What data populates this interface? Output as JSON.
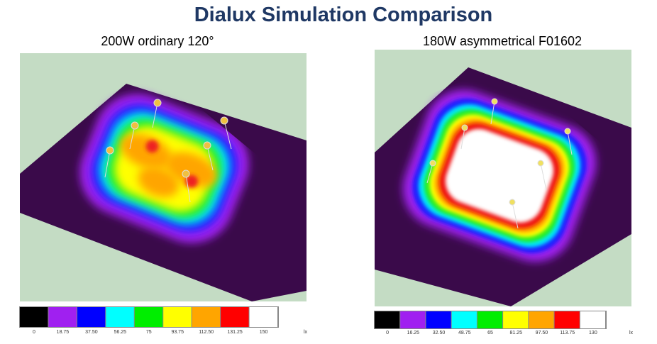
{
  "title": "Dialux Simulation Comparison",
  "panels": [
    {
      "subtitle": "200W ordinary 120°",
      "legend": {
        "labels": [
          "0",
          "18.75",
          "37.50",
          "56.25",
          "75",
          "93.75",
          "112.50",
          "131.25",
          "150"
        ],
        "unit": "lx"
      }
    },
    {
      "subtitle": "180W asymmetrical F01602",
      "legend": {
        "labels": [
          "0",
          "16.25",
          "32.50",
          "48.75",
          "65",
          "81.25",
          "97.50",
          "113.75",
          "130"
        ],
        "unit": "lx"
      }
    }
  ]
}
